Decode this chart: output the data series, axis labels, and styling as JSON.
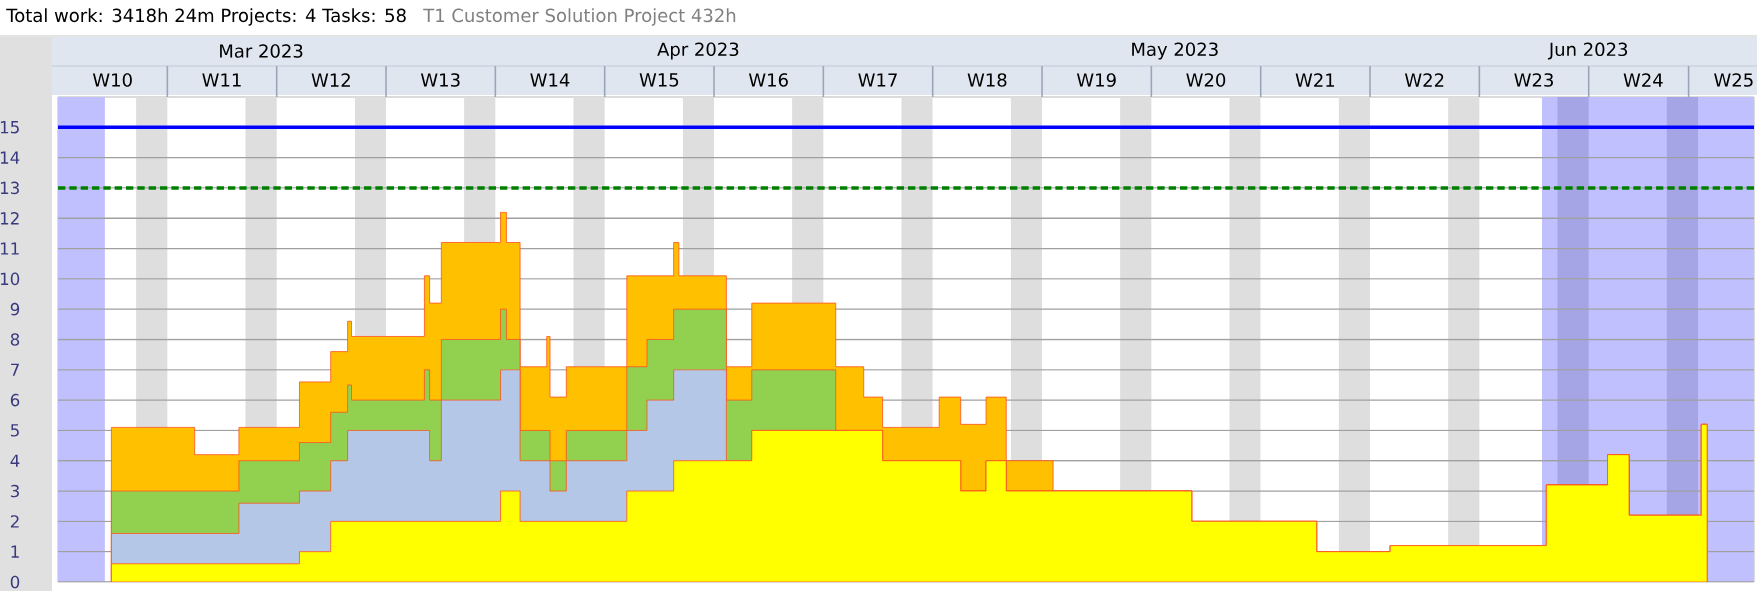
{
  "chart_data": {
    "type": "area",
    "stacked": true,
    "title": "Total work: 3418h 24m  Projects: 4  Tasks: 58",
    "subtitle": "T1 Customer Solution Project 432h",
    "x": [
      "2023-03-09T10:00",
      "2023-03-09T10:00",
      "2023-03-14T18:00",
      "2023-03-14T18:00",
      "2023-03-17T14:00",
      "2023-03-17T14:00",
      "2023-03-21T11:00",
      "2023-03-21T11:00",
      "2023-03-23T11:00",
      "2023-03-23T11:00",
      "2023-03-24T13:00",
      "2023-03-24T13:00",
      "2023-03-24T19:00",
      "2023-03-24T19:00",
      "2023-03-29T11:00",
      "2023-03-29T11:00",
      "2023-03-29T19:00",
      "2023-03-29T19:00",
      "2023-03-30T13:00",
      "2023-03-30T13:00",
      "2023-04-03T08:00",
      "2023-04-03T08:00",
      "2023-04-03T17:00",
      "2023-04-03T17:00",
      "2023-04-04T14:00",
      "2023-04-04T14:00",
      "2023-04-06T07:00",
      "2023-04-06T07:00",
      "2023-04-06T12:00",
      "2023-04-06T12:00",
      "2023-04-07T13:00",
      "2023-04-07T13:00",
      "2023-04-11T10:00",
      "2023-04-11T10:00",
      "2023-04-12T17:00",
      "2023-04-12T17:00",
      "2023-04-14T10:00",
      "2023-04-14T10:00",
      "2023-04-14T18:00",
      "2023-04-14T18:00",
      "2023-04-17T19:00",
      "2023-04-17T19:00",
      "2023-04-19T10:00",
      "2023-04-19T10:00",
      "2023-04-24T19:00",
      "2023-04-24T19:00",
      "2023-04-26T14:00",
      "2023-04-26T14:00",
      "2023-04-27T19:00",
      "2023-04-27T19:00",
      "2023-05-01T10:00",
      "2023-05-01T10:00",
      "2023-05-02T19:00",
      "2023-05-02T19:00",
      "2023-05-04T10:00",
      "2023-05-04T10:00",
      "2023-05-05T17:00",
      "2023-05-05T17:00",
      "2023-05-08T17:00",
      "2023-05-08T17:00",
      "2023-05-17T14:00",
      "2023-05-17T14:00",
      "2023-05-25T14:00",
      "2023-05-25T14:00",
      "2023-05-30T07:00",
      "2023-05-30T07:00",
      "2023-06-09T07:00",
      "2023-06-09T07:00",
      "2023-06-13T05:00",
      "2023-06-13T05:00",
      "2023-06-14T14:00",
      "2023-06-14T14:00",
      "2023-06-19T05:00",
      "2023-06-19T05:00",
      "2023-06-19T14:00",
      "2023-06-19T14:00"
    ],
    "series": [
      {
        "color": "#ffff00",
        "values": [
          0,
          0.6,
          0.6,
          0.6,
          0.6,
          0.6,
          0.6,
          1.0,
          1.0,
          2.0,
          2.0,
          2.0,
          2.0,
          2.0,
          2.0,
          2.0,
          2.0,
          2.0,
          2.0,
          2.0,
          2.0,
          3.0,
          3.0,
          3.0,
          3.0,
          2.0,
          2.0,
          2.0,
          2.0,
          2.0,
          2.0,
          2.0,
          2.0,
          3.0,
          3.0,
          3.0,
          3.0,
          4.0,
          4.0,
          4.0,
          4.0,
          4.0,
          4.0,
          5.0,
          5.0,
          5.0,
          5.0,
          5.0,
          5.0,
          4.0,
          4.0,
          4.0,
          4.0,
          3.0,
          3.0,
          4.0,
          4.0,
          3.0,
          3.0,
          3.0,
          3.0,
          2.0,
          2.0,
          1.0,
          1.0,
          1.2,
          1.2,
          3.2,
          3.2,
          4.2,
          4.2,
          2.2,
          2.2,
          5.2,
          5.2,
          0
        ]
      },
      {
        "color": "#b4c7e7",
        "values": [
          0,
          1.0,
          1.0,
          1.0,
          1.0,
          2.0,
          2.0,
          2.0,
          2.0,
          2.0,
          2.0,
          3.0,
          3.0,
          3.0,
          3.0,
          3.0,
          3.0,
          2.0,
          2.0,
          4.0,
          4.0,
          4.0,
          4.0,
          4.0,
          4.0,
          2.0,
          2.0,
          2.0,
          2.0,
          1.0,
          1.0,
          2.0,
          2.0,
          2.0,
          2.0,
          3.0,
          3.0,
          3.0,
          3.0,
          3.0,
          3.0,
          0,
          0,
          0,
          0,
          0,
          0,
          0,
          0,
          0,
          0,
          0,
          0,
          0,
          0,
          0,
          0,
          0,
          0,
          0,
          0,
          0,
          0,
          0,
          0,
          0,
          0,
          0,
          0,
          0,
          0,
          0,
          0,
          0,
          0,
          0
        ]
      },
      {
        "color": "#92d050",
        "values": [
          0,
          1.4,
          1.4,
          1.4,
          1.4,
          1.4,
          1.4,
          1.6,
          1.6,
          1.6,
          1.6,
          1.5,
          1.5,
          1.0,
          1.0,
          2.0,
          2.0,
          2.0,
          2.0,
          2.0,
          2.0,
          2.0,
          2.0,
          1.0,
          1.0,
          1.0,
          1.0,
          1.0,
          1.0,
          1.0,
          1.0,
          1.0,
          1.0,
          2.1,
          2.1,
          2.0,
          2.0,
          2.0,
          2.0,
          2.0,
          2.0,
          2.0,
          2.0,
          2.0,
          2.0,
          0,
          0,
          0,
          0,
          0,
          0,
          0,
          0,
          0,
          0,
          0,
          0,
          0,
          0,
          0,
          0,
          0,
          0,
          0,
          0,
          0,
          0,
          0,
          0,
          0,
          0,
          0,
          0,
          0,
          0,
          0
        ]
      },
      {
        "color": "#ffc000",
        "values": [
          0,
          2.1,
          2.1,
          1.2,
          1.2,
          1.1,
          1.1,
          2.0,
          2.0,
          2.0,
          2.0,
          2.1,
          2.1,
          2.1,
          2.1,
          3.1,
          3.1,
          3.2,
          3.2,
          3.2,
          3.2,
          3.2,
          3.2,
          3.2,
          3.2,
          2.1,
          2.1,
          3.1,
          3.1,
          2.1,
          2.1,
          2.1,
          2.1,
          3.0,
          3.0,
          2.1,
          2.1,
          2.2,
          2.2,
          1.1,
          1.1,
          1.1,
          1.1,
          2.2,
          2.2,
          2.1,
          2.1,
          1.1,
          1.1,
          1.1,
          1.1,
          2.1,
          2.1,
          2.2,
          2.2,
          2.1,
          2.1,
          1.0,
          1.0,
          0,
          0,
          0,
          0,
          0,
          0,
          0,
          0,
          0,
          0,
          0,
          0,
          0,
          0,
          0,
          0,
          0
        ]
      }
    ],
    "xlim": [
      "2023-03-06",
      "2023-06-22T14:00"
    ],
    "xticks": [
      {
        "value": "2023-03-09T12:00",
        "label": "W10"
      },
      {
        "value": "2023-03-16T12:00",
        "label": "W11"
      },
      {
        "value": "2023-03-23T12:00",
        "label": "W12"
      },
      {
        "value": "2023-03-30T12:00",
        "label": "W13"
      },
      {
        "value": "2023-04-06T12:00",
        "label": "W14"
      },
      {
        "value": "2023-04-13T12:00",
        "label": "W15"
      },
      {
        "value": "2023-04-20T12:00",
        "label": "W16"
      },
      {
        "value": "2023-04-27T12:00",
        "label": "W17"
      },
      {
        "value": "2023-05-04T12:00",
        "label": "W18"
      },
      {
        "value": "2023-05-11T12:00",
        "label": "W19"
      },
      {
        "value": "2023-05-18T12:00",
        "label": "W20"
      },
      {
        "value": "2023-05-25T12:00",
        "label": "W21"
      },
      {
        "value": "2023-06-01T12:00",
        "label": "W22"
      },
      {
        "value": "2023-06-08T12:00",
        "label": "W23"
      },
      {
        "value": "2023-06-15T12:00",
        "label": "W24"
      },
      {
        "value": "2023-06-21T07:00",
        "label": "W25"
      }
    ],
    "x2lim": [
      "2023-03-06",
      "2023-06-22T14:00"
    ],
    "x2ticks": [
      {
        "value": "2023-03-19",
        "label": "Mar 2023"
      },
      {
        "value": "2023-04-16",
        "label": "Apr 2023"
      },
      {
        "value": "2023-05-16T12:00",
        "label": "May 2023"
      },
      {
        "value": "2023-06-12",
        "label": "Jun 2023"
      }
    ],
    "ylim": [
      0,
      16
    ],
    "yticks": [
      0,
      1,
      2,
      3,
      4,
      5,
      6,
      7,
      8,
      9,
      10,
      11,
      12,
      13,
      14,
      15
    ],
    "grid": "y",
    "ref_lines": [
      {
        "axis": "y",
        "value": 15,
        "color": "#0000ff",
        "line_style": "solid"
      },
      {
        "axis": "y",
        "value": 13,
        "color": "#008000",
        "line_style": "dashed"
      }
    ],
    "bands": [
      {
        "axis": "x",
        "from": "2023-03-06",
        "to": "2023-03-09",
        "color": "#c0c0ff"
      },
      {
        "axis": "x",
        "from": "2023-06-09",
        "to": "2023-06-22T14:00",
        "color": "#c0c0ff"
      },
      {
        "axis": "x",
        "from": "2023-03-11",
        "to": "2023-03-13",
        "color": "#dedede"
      },
      {
        "axis": "x",
        "from": "2023-03-18",
        "to": "2023-03-20",
        "color": "#dedede"
      },
      {
        "axis": "x",
        "from": "2023-03-25",
        "to": "2023-03-27",
        "color": "#dedede"
      },
      {
        "axis": "x",
        "from": "2023-04-01",
        "to": "2023-04-03",
        "color": "#dedede"
      },
      {
        "axis": "x",
        "from": "2023-04-08",
        "to": "2023-04-10",
        "color": "#dedede"
      },
      {
        "axis": "x",
        "from": "2023-04-15",
        "to": "2023-04-17",
        "color": "#dedede"
      },
      {
        "axis": "x",
        "from": "2023-04-22",
        "to": "2023-04-24",
        "color": "#dedede"
      },
      {
        "axis": "x",
        "from": "2023-04-29",
        "to": "2023-05-01",
        "color": "#dedede"
      },
      {
        "axis": "x",
        "from": "2023-05-06",
        "to": "2023-05-08",
        "color": "#dedede"
      },
      {
        "axis": "x",
        "from": "2023-05-13",
        "to": "2023-05-15",
        "color": "#dedede"
      },
      {
        "axis": "x",
        "from": "2023-05-20",
        "to": "2023-05-22",
        "color": "#dedede"
      },
      {
        "axis": "x",
        "from": "2023-05-27",
        "to": "2023-05-29",
        "color": "#dedede"
      },
      {
        "axis": "x",
        "from": "2023-06-03",
        "to": "2023-06-05",
        "color": "#dedede"
      },
      {
        "axis": "x",
        "from": "2023-06-10",
        "to": "2023-06-12",
        "color": "#a5a5e6"
      },
      {
        "axis": "x",
        "from": "2023-06-17",
        "to": "2023-06-19",
        "color": "#a5a5e6"
      }
    ]
  }
}
